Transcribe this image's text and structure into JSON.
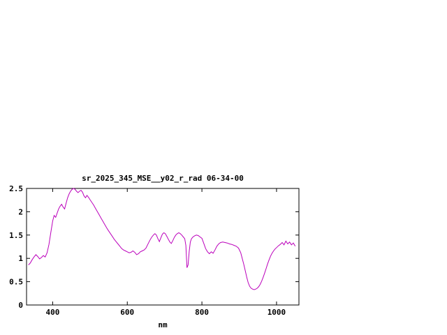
{
  "chart_data": {
    "type": "line",
    "title": "sr_2025_345_MSE__y02_r_rad 06-34-00",
    "xlabel": "nm",
    "ylabel": "",
    "xlim": [
      330,
      1060
    ],
    "ylim": [
      0,
      2.5
    ],
    "xticks": [
      400,
      600,
      800,
      1000
    ],
    "xtick_labels": [
      "400",
      "600",
      "800",
      "1000"
    ],
    "yticks": [
      0,
      0.5,
      1,
      1.5,
      2,
      2.5
    ],
    "ytick_labels": [
      "0",
      "0.5",
      "1",
      "1.5",
      "2",
      "2.5"
    ],
    "grid": false,
    "legend": null,
    "line_color": "#bb00bb",
    "border_color": "#000000",
    "series": [
      {
        "name": "sr_2025_345_MSE__y02_r_rad",
        "x": [
          335,
          340,
          345,
          350,
          355,
          360,
          365,
          370,
          375,
          380,
          385,
          390,
          395,
          400,
          404,
          408,
          412,
          416,
          420,
          424,
          428,
          432,
          436,
          440,
          444,
          448,
          452,
          456,
          460,
          464,
          468,
          472,
          476,
          480,
          484,
          488,
          492,
          496,
          500,
          505,
          510,
          515,
          520,
          525,
          530,
          535,
          540,
          545,
          550,
          555,
          560,
          565,
          570,
          575,
          580,
          585,
          590,
          595,
          600,
          605,
          610,
          615,
          620,
          625,
          630,
          635,
          640,
          645,
          650,
          655,
          660,
          665,
          670,
          674,
          678,
          682,
          686,
          690,
          694,
          698,
          702,
          706,
          710,
          714,
          718,
          722,
          726,
          730,
          734,
          738,
          742,
          746,
          750,
          754,
          757,
          760,
          763,
          766,
          769,
          772,
          776,
          780,
          785,
          790,
          795,
          800,
          805,
          810,
          815,
          820,
          825,
          830,
          835,
          840,
          845,
          850,
          856,
          862,
          868,
          874,
          880,
          886,
          892,
          898,
          904,
          908,
          912,
          916,
          920,
          924,
          928,
          932,
          936,
          940,
          944,
          948,
          952,
          956,
          960,
          964,
          968,
          972,
          976,
          980,
          984,
          988,
          992,
          996,
          1000,
          1005,
          1010,
          1015,
          1020,
          1025,
          1030,
          1035,
          1040,
          1045,
          1050
        ],
        "y": [
          0.86,
          0.9,
          0.97,
          1.03,
          1.08,
          1.04,
          0.99,
          1.02,
          1.06,
          1.03,
          1.12,
          1.3,
          1.55,
          1.8,
          1.92,
          1.88,
          1.97,
          2.06,
          2.12,
          2.16,
          2.1,
          2.06,
          2.18,
          2.3,
          2.38,
          2.44,
          2.48,
          2.5,
          2.48,
          2.44,
          2.41,
          2.44,
          2.46,
          2.42,
          2.34,
          2.3,
          2.35,
          2.31,
          2.26,
          2.2,
          2.14,
          2.07,
          2.0,
          1.93,
          1.86,
          1.79,
          1.72,
          1.65,
          1.59,
          1.53,
          1.47,
          1.41,
          1.36,
          1.31,
          1.26,
          1.21,
          1.18,
          1.16,
          1.14,
          1.12,
          1.13,
          1.16,
          1.13,
          1.08,
          1.1,
          1.14,
          1.16,
          1.18,
          1.22,
          1.3,
          1.38,
          1.45,
          1.5,
          1.53,
          1.5,
          1.42,
          1.36,
          1.44,
          1.52,
          1.55,
          1.53,
          1.47,
          1.41,
          1.35,
          1.32,
          1.38,
          1.45,
          1.5,
          1.53,
          1.55,
          1.53,
          1.5,
          1.46,
          1.42,
          1.28,
          0.8,
          0.86,
          1.15,
          1.35,
          1.42,
          1.46,
          1.48,
          1.5,
          1.49,
          1.46,
          1.43,
          1.32,
          1.21,
          1.14,
          1.1,
          1.14,
          1.11,
          1.18,
          1.26,
          1.31,
          1.34,
          1.35,
          1.34,
          1.33,
          1.31,
          1.3,
          1.28,
          1.26,
          1.22,
          1.12,
          1.0,
          0.88,
          0.74,
          0.6,
          0.48,
          0.4,
          0.36,
          0.34,
          0.33,
          0.34,
          0.36,
          0.39,
          0.44,
          0.51,
          0.59,
          0.68,
          0.78,
          0.88,
          0.97,
          1.05,
          1.11,
          1.16,
          1.2,
          1.23,
          1.27,
          1.3,
          1.34,
          1.29,
          1.37,
          1.31,
          1.35,
          1.29,
          1.33,
          1.26
        ]
      }
    ]
  }
}
